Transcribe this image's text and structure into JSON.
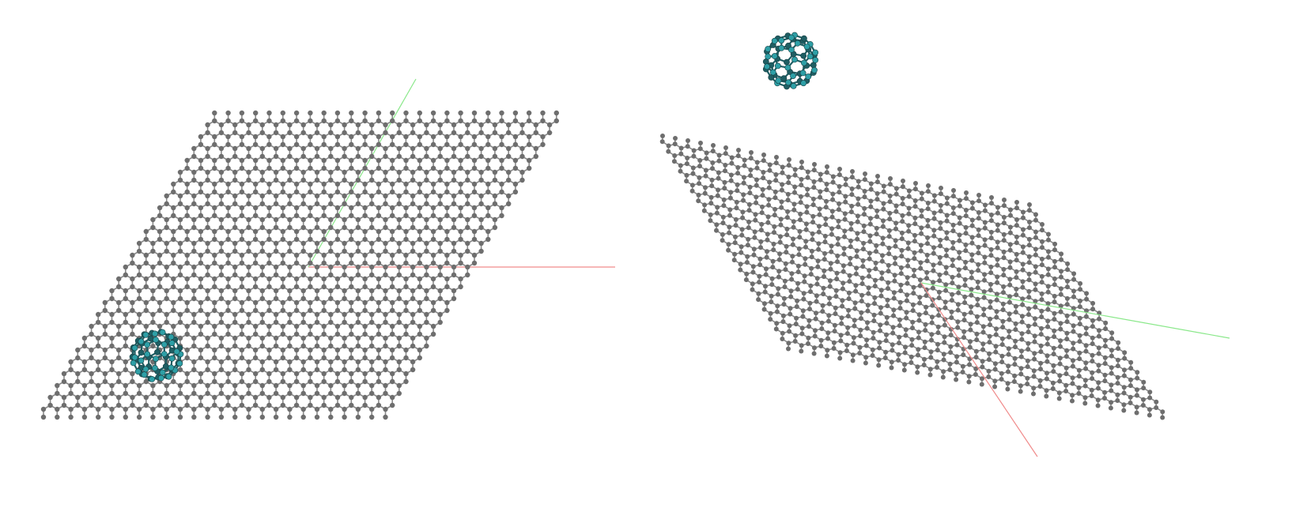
{
  "scene": {
    "description_visible_text": "",
    "background_color": "#ffffff"
  },
  "colors": {
    "graphene_atom": "#6e6e6e",
    "graphene_atom_highlight": "#b0b0b0",
    "graphene_bond": "#8a8a8a",
    "fullerene_atom": "#2e9fa6",
    "fullerene_atom_dark": "#1f5e63",
    "axis_x": "#f08a8a",
    "axis_y": "#8ae88a"
  },
  "views": [
    {
      "name": "top-view",
      "contents": [
        "graphene-sheet",
        "fullerene-c60",
        "axis-x",
        "axis-y"
      ]
    },
    {
      "name": "perspective-view",
      "contents": [
        "graphene-sheet",
        "fullerene-c60",
        "axis-x",
        "axis-y"
      ]
    }
  ]
}
